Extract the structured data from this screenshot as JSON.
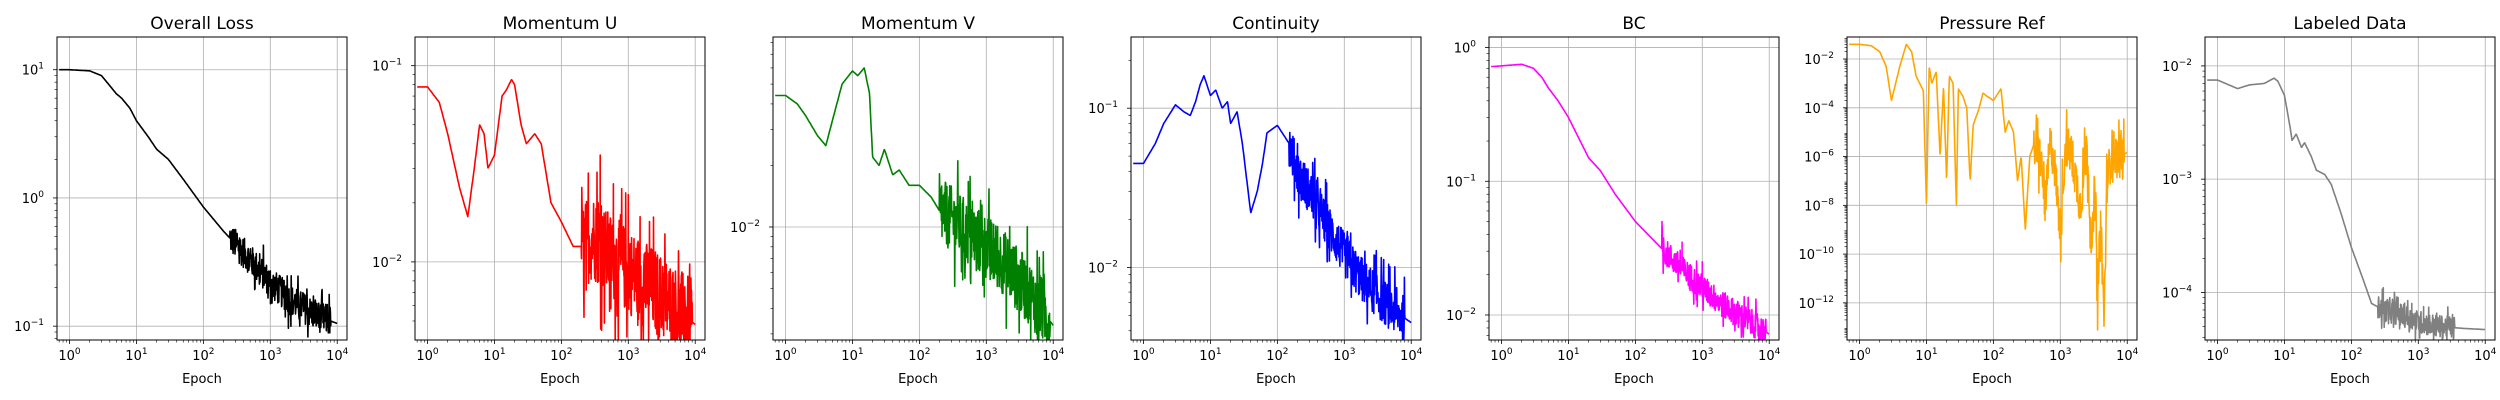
{
  "figure": {
    "x_scale": "log",
    "y_scale": "log",
    "grid": true,
    "xlim": [
      0.65,
      14000
    ]
  },
  "chart_data": [
    {
      "type": "line",
      "title": "Overall Loss",
      "xlabel": "Epoch",
      "ylabel": "",
      "color": "#000000",
      "ylim": [
        0.078,
        18
      ],
      "x_ticks": [
        {
          "base": "10",
          "exp": "0",
          "value": 1
        },
        {
          "base": "10",
          "exp": "1",
          "value": 10
        },
        {
          "base": "10",
          "exp": "2",
          "value": 100
        },
        {
          "base": "10",
          "exp": "3",
          "value": 1000
        },
        {
          "base": "10",
          "exp": "4",
          "value": 10000
        }
      ],
      "y_ticks": [
        {
          "base": "10",
          "exp": "−1",
          "value": 0.1
        },
        {
          "base": "10",
          "exp": "0",
          "value": 1
        },
        {
          "base": "10",
          "exp": "1",
          "value": 10
        }
      ],
      "x": [
        0.7,
        1,
        2,
        3,
        4,
        5,
        6,
        8,
        10,
        15,
        20,
        30,
        50,
        100,
        200,
        500,
        1000,
        2000,
        5000,
        10000
      ],
      "values": [
        10,
        10,
        9.8,
        9.0,
        7.5,
        6.5,
        6.0,
        5.0,
        4.0,
        3.0,
        2.4,
        2.0,
        1.4,
        0.85,
        0.55,
        0.33,
        0.22,
        0.16,
        0.12,
        0.105
      ],
      "noise": {
        "start": 250,
        "end": 8000,
        "amplitude": 0.12,
        "spikes": [
          [
            250,
            0.55
          ],
          [
            600,
            0.34
          ],
          [
            1000,
            0.27
          ]
        ]
      }
    },
    {
      "type": "line",
      "title": "Momentum U",
      "xlabel": "Epoch",
      "ylabel": "",
      "color": "#ff0000",
      "ylim": [
        0.004,
        0.14
      ],
      "x_ticks": [
        {
          "base": "10",
          "exp": "0",
          "value": 1
        },
        {
          "base": "10",
          "exp": "1",
          "value": 10
        },
        {
          "base": "10",
          "exp": "2",
          "value": 100
        },
        {
          "base": "10",
          "exp": "3",
          "value": 1000
        },
        {
          "base": "10",
          "exp": "4",
          "value": 10000
        }
      ],
      "y_ticks": [
        {
          "base": "10",
          "exp": "−2",
          "value": 0.01
        },
        {
          "base": "10",
          "exp": "−1",
          "value": 0.1
        }
      ],
      "x": [
        0.7,
        1,
        1.5,
        2,
        3,
        4,
        5,
        6,
        7,
        8,
        10,
        13,
        15,
        18,
        20,
        25,
        30,
        40,
        50,
        70,
        100,
        150,
        200,
        300,
        500,
        1000,
        2000,
        5000,
        10000
      ],
      "values": [
        0.078,
        0.078,
        0.065,
        0.045,
        0.024,
        0.017,
        0.03,
        0.05,
        0.045,
        0.03,
        0.035,
        0.07,
        0.075,
        0.085,
        0.08,
        0.05,
        0.04,
        0.045,
        0.04,
        0.02,
        0.016,
        0.012,
        0.012,
        0.0135,
        0.011,
        0.009,
        0.0075,
        0.0058,
        0.0048
      ],
      "noise": {
        "start": 200,
        "end": 9000,
        "amplitude": 0.22,
        "spikes": [
          [
            380,
            0.035
          ],
          [
            600,
            0.025
          ],
          [
            1000,
            0.022
          ],
          [
            1500,
            0.017
          ]
        ]
      }
    },
    {
      "type": "line",
      "title": "Momentum V",
      "xlabel": "Epoch",
      "ylabel": "",
      "color": "#008000",
      "ylim": [
        0.0028,
        0.085
      ],
      "x_ticks": [
        {
          "base": "10",
          "exp": "0",
          "value": 1
        },
        {
          "base": "10",
          "exp": "1",
          "value": 10
        },
        {
          "base": "10",
          "exp": "2",
          "value": 100
        },
        {
          "base": "10",
          "exp": "3",
          "value": 1000
        },
        {
          "base": "10",
          "exp": "4",
          "value": 10000
        }
      ],
      "y_ticks": [
        {
          "base": "10",
          "exp": "−2",
          "value": 0.01
        }
      ],
      "x": [
        0.7,
        1,
        1.5,
        2,
        3,
        4,
        5,
        7,
        10,
        12,
        15,
        18,
        20,
        25,
        30,
        40,
        50,
        70,
        100,
        150,
        200,
        300,
        500,
        1000,
        2000,
        5000,
        10000
      ],
      "values": [
        0.044,
        0.044,
        0.04,
        0.035,
        0.028,
        0.025,
        0.033,
        0.05,
        0.058,
        0.055,
        0.06,
        0.045,
        0.022,
        0.02,
        0.024,
        0.018,
        0.019,
        0.016,
        0.016,
        0.014,
        0.012,
        0.011,
        0.0095,
        0.008,
        0.0065,
        0.0045,
        0.0033
      ],
      "noise": {
        "start": 200,
        "end": 9000,
        "amplitude": 0.16,
        "spikes": [
          [
            300,
            0.012
          ],
          [
            500,
            0.011
          ],
          [
            1000,
            0.0095
          ]
        ]
      }
    },
    {
      "type": "line",
      "title": "Continuity",
      "xlabel": "Epoch",
      "ylabel": "",
      "color": "#0000ff",
      "ylim": [
        0.0035,
        0.28
      ],
      "x_ticks": [
        {
          "base": "10",
          "exp": "0",
          "value": 1
        },
        {
          "base": "10",
          "exp": "1",
          "value": 10
        },
        {
          "base": "10",
          "exp": "2",
          "value": 100
        },
        {
          "base": "10",
          "exp": "3",
          "value": 1000
        },
        {
          "base": "10",
          "exp": "4",
          "value": 10000
        }
      ],
      "y_ticks": [
        {
          "base": "10",
          "exp": "−2",
          "value": 0.01
        },
        {
          "base": "10",
          "exp": "−1",
          "value": 0.1
        }
      ],
      "x": [
        0.7,
        1,
        1.5,
        2,
        3,
        4,
        5,
        6,
        7,
        8,
        10,
        12,
        15,
        18,
        20,
        25,
        30,
        35,
        40,
        50,
        60,
        70,
        100,
        150,
        200,
        300,
        500,
        1000,
        2000,
        5000,
        10000
      ],
      "values": [
        0.045,
        0.045,
        0.06,
        0.08,
        0.105,
        0.095,
        0.09,
        0.11,
        0.14,
        0.16,
        0.12,
        0.13,
        0.1,
        0.11,
        0.08,
        0.095,
        0.06,
        0.035,
        0.022,
        0.03,
        0.045,
        0.07,
        0.078,
        0.06,
        0.04,
        0.03,
        0.02,
        0.012,
        0.008,
        0.0055,
        0.0045
      ],
      "noise": {
        "start": 150,
        "end": 8000,
        "amplitude": 0.14,
        "spikes": [
          [
            200,
            0.06
          ],
          [
            300,
            0.033
          ],
          [
            600,
            0.022
          ]
        ]
      }
    },
    {
      "type": "line",
      "title": "BC",
      "xlabel": "Epoch",
      "ylabel": "",
      "color": "#ff00ff",
      "ylim": [
        0.0065,
        1.2
      ],
      "x_ticks": [
        {
          "base": "10",
          "exp": "0",
          "value": 1
        },
        {
          "base": "10",
          "exp": "1",
          "value": 10
        },
        {
          "base": "10",
          "exp": "2",
          "value": 100
        },
        {
          "base": "10",
          "exp": "3",
          "value": 1000
        },
        {
          "base": "10",
          "exp": "4",
          "value": 10000
        }
      ],
      "y_ticks": [
        {
          "base": "10",
          "exp": "−2",
          "value": 0.01
        },
        {
          "base": "10",
          "exp": "−1",
          "value": 0.1
        },
        {
          "base": "10",
          "exp": "0",
          "value": 1
        }
      ],
      "x": [
        0.7,
        1,
        2,
        3,
        4,
        5,
        7,
        10,
        15,
        20,
        30,
        50,
        100,
        200,
        500,
        1000,
        2000,
        5000,
        10000
      ],
      "values": [
        0.72,
        0.73,
        0.75,
        0.7,
        0.6,
        0.5,
        0.4,
        0.3,
        0.2,
        0.15,
        0.12,
        0.08,
        0.05,
        0.035,
        0.022,
        0.016,
        0.012,
        0.009,
        0.0072
      ],
      "noise": {
        "start": 250,
        "end": 9000,
        "amplitude": 0.1,
        "spikes": [
          [
            250,
            0.05
          ],
          [
            500,
            0.035
          ],
          [
            1000,
            0.025
          ]
        ]
      }
    },
    {
      "type": "line",
      "title": "Pressure Ref",
      "xlabel": "Epoch",
      "ylabel": "",
      "color": "#ffa500",
      "ylim": [
        3e-14,
        0.08
      ],
      "x_ticks": [
        {
          "base": "10",
          "exp": "0",
          "value": 1
        },
        {
          "base": "10",
          "exp": "1",
          "value": 10
        },
        {
          "base": "10",
          "exp": "2",
          "value": 100
        },
        {
          "base": "10",
          "exp": "3",
          "value": 1000
        },
        {
          "base": "10",
          "exp": "4",
          "value": 10000
        }
      ],
      "y_ticks": [
        {
          "base": "10",
          "exp": "−12",
          "value": 1e-12
        },
        {
          "base": "10",
          "exp": "−10",
          "value": 1e-10
        },
        {
          "base": "10",
          "exp": "−8",
          "value": 1e-08
        },
        {
          "base": "10",
          "exp": "−6",
          "value": 1e-06
        },
        {
          "base": "10",
          "exp": "−4",
          "value": 0.0001
        },
        {
          "base": "10",
          "exp": "−2",
          "value": 0.01
        }
      ],
      "x": [
        0.7,
        1,
        1.5,
        2,
        2.5,
        3,
        4,
        5,
        6,
        7,
        9,
        10,
        11,
        12,
        14,
        16,
        18,
        20,
        22,
        25,
        28,
        30,
        35,
        40,
        45,
        50,
        60,
        70,
        80,
        100,
        130,
        150,
        170,
        200,
        230,
        260,
        300,
        350,
        400,
        500,
        600,
        700,
        800,
        1000,
        1200,
        1500,
        2000,
        2500,
        3000,
        3300,
        3600,
        4000,
        4500,
        5000,
        6000,
        7000,
        8000,
        10000
      ],
      "values": [
        0.04,
        0.04,
        0.035,
        0.02,
        0.005,
        0.0002,
        0.005,
        0.04,
        0.02,
        0.002,
        0.0005,
        1e-08,
        0.005,
        0.001,
        0.003,
        1e-06,
        0.0008,
        1e-07,
        0.002,
        0.001,
        1e-08,
        0.0006,
        0.0003,
        0.0001,
        1e-07,
        2e-05,
        8e-05,
        0.0004,
        0.0003,
        0.0002,
        0.0006,
        1e-05,
        3e-05,
        1e-05,
        1e-07,
        1e-06,
        1e-09,
        1e-06,
        3e-06,
        1e-06,
        1e-08,
        3e-06,
        1e-06,
        1e-09,
        3e-06,
        1e-06,
        1e-08,
        2e-06,
        1e-10,
        2e-07,
        5e-13,
        5e-09,
        2e-13,
        1e-07,
        2e-06,
        1e-06,
        1e-06,
        1.5e-06
      ],
      "noise": {
        "start": 400,
        "end": 9000,
        "amplitude": 0.9,
        "spikes": []
      }
    },
    {
      "type": "line",
      "title": "Labeled Data",
      "xlabel": "Epoch",
      "ylabel": "",
      "color": "#808080",
      "ylim": [
        3.8e-05,
        0.018
      ],
      "x_ticks": [
        {
          "base": "10",
          "exp": "0",
          "value": 1
        },
        {
          "base": "10",
          "exp": "1",
          "value": 10
        },
        {
          "base": "10",
          "exp": "2",
          "value": 100
        },
        {
          "base": "10",
          "exp": "3",
          "value": 1000
        },
        {
          "base": "10",
          "exp": "4",
          "value": 10000
        }
      ],
      "y_ticks": [
        {
          "base": "10",
          "exp": "−4",
          "value": 0.0001
        },
        {
          "base": "10",
          "exp": "−3",
          "value": 0.001
        },
        {
          "base": "10",
          "exp": "−2",
          "value": 0.01
        }
      ],
      "x": [
        0.7,
        1,
        2,
        3,
        5,
        7,
        8,
        10,
        12,
        13,
        15,
        18,
        20,
        25,
        30,
        40,
        50,
        70,
        100,
        150,
        200,
        300,
        500,
        1000,
        2000,
        5000,
        10000
      ],
      "values": [
        0.0075,
        0.0075,
        0.0063,
        0.0068,
        0.007,
        0.0078,
        0.0073,
        0.0055,
        0.003,
        0.0022,
        0.0025,
        0.0019,
        0.0021,
        0.0016,
        0.0012,
        0.0011,
        0.0009,
        0.0005,
        0.00025,
        0.00013,
        8e-05,
        7e-05,
        6.5e-05,
        5.5e-05,
        5e-05,
        4.8e-05,
        4.7e-05
      ],
      "noise": {
        "start": 250,
        "end": 3500,
        "amplitude": 0.1,
        "spikes": [
          [
            300,
            0.00011
          ],
          [
            500,
            9e-05
          ],
          [
            800,
            8e-05
          ],
          [
            1200,
            7.5e-05
          ]
        ]
      }
    }
  ]
}
